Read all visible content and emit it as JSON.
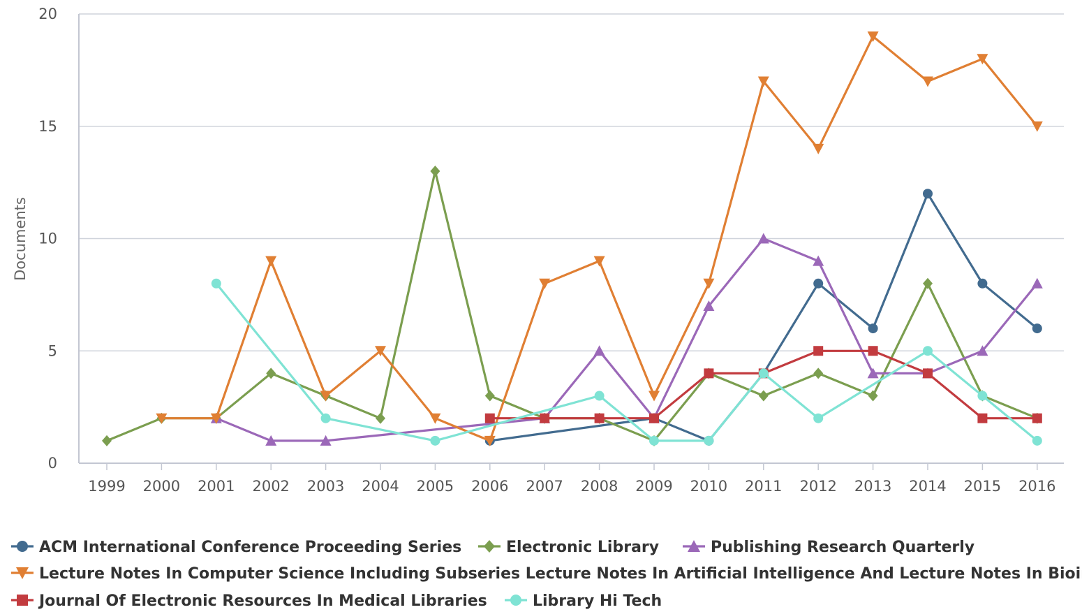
{
  "chart_data": {
    "type": "line",
    "title": "",
    "xlabel": "",
    "ylabel": "Documents",
    "x": [
      "1999",
      "2000",
      "2001",
      "2002",
      "2003",
      "2004",
      "2005",
      "2006",
      "2007",
      "2008",
      "2009",
      "2010",
      "2011",
      "2012",
      "2013",
      "2014",
      "2015",
      "2016"
    ],
    "ylim": [
      0,
      20
    ],
    "yticks": [
      0,
      5,
      10,
      15,
      20
    ],
    "grid": "horizontal",
    "legend_position": "bottom-left",
    "series": [
      {
        "name": "ACM International Conference Proceeding Series",
        "color": "#426b8f",
        "marker": "circle",
        "values": [
          null,
          null,
          null,
          null,
          null,
          null,
          null,
          1,
          null,
          null,
          2,
          1,
          4,
          8,
          6,
          12,
          8,
          6
        ]
      },
      {
        "name": "Electronic Library",
        "color": "#7b9e4f",
        "marker": "diamond",
        "values": [
          1,
          2,
          2,
          4,
          3,
          2,
          13,
          3,
          2,
          2,
          1,
          4,
          3,
          4,
          3,
          8,
          3,
          2
        ]
      },
      {
        "name": "Publishing Research Quarterly",
        "color": "#9b68b8",
        "marker": "triangle-up",
        "values": [
          null,
          null,
          2,
          1,
          1,
          null,
          null,
          null,
          2,
          5,
          2,
          7,
          10,
          9,
          4,
          4,
          5,
          8
        ]
      },
      {
        "name": "Lecture Notes In Computer Science Including Subseries Lecture Notes In Artificial Intelligence And Lecture Notes In Bioinfor",
        "color": "#e07f33",
        "marker": "triangle-down",
        "values": [
          null,
          2,
          2,
          9,
          3,
          5,
          2,
          1,
          8,
          9,
          3,
          8,
          17,
          14,
          19,
          17,
          18,
          15
        ]
      },
      {
        "name": "Journal Of Electronic Resources In Medical Libraries",
        "color": "#c23b3f",
        "marker": "square",
        "values": [
          null,
          null,
          null,
          null,
          null,
          null,
          null,
          2,
          2,
          2,
          2,
          4,
          4,
          5,
          5,
          4,
          2,
          2
        ]
      },
      {
        "name": "Library Hi Tech",
        "color": "#7fe3d4",
        "marker": "circle",
        "values": [
          null,
          null,
          8,
          null,
          2,
          null,
          1,
          null,
          null,
          3,
          1,
          1,
          4,
          2,
          null,
          5,
          3,
          1
        ]
      }
    ]
  }
}
